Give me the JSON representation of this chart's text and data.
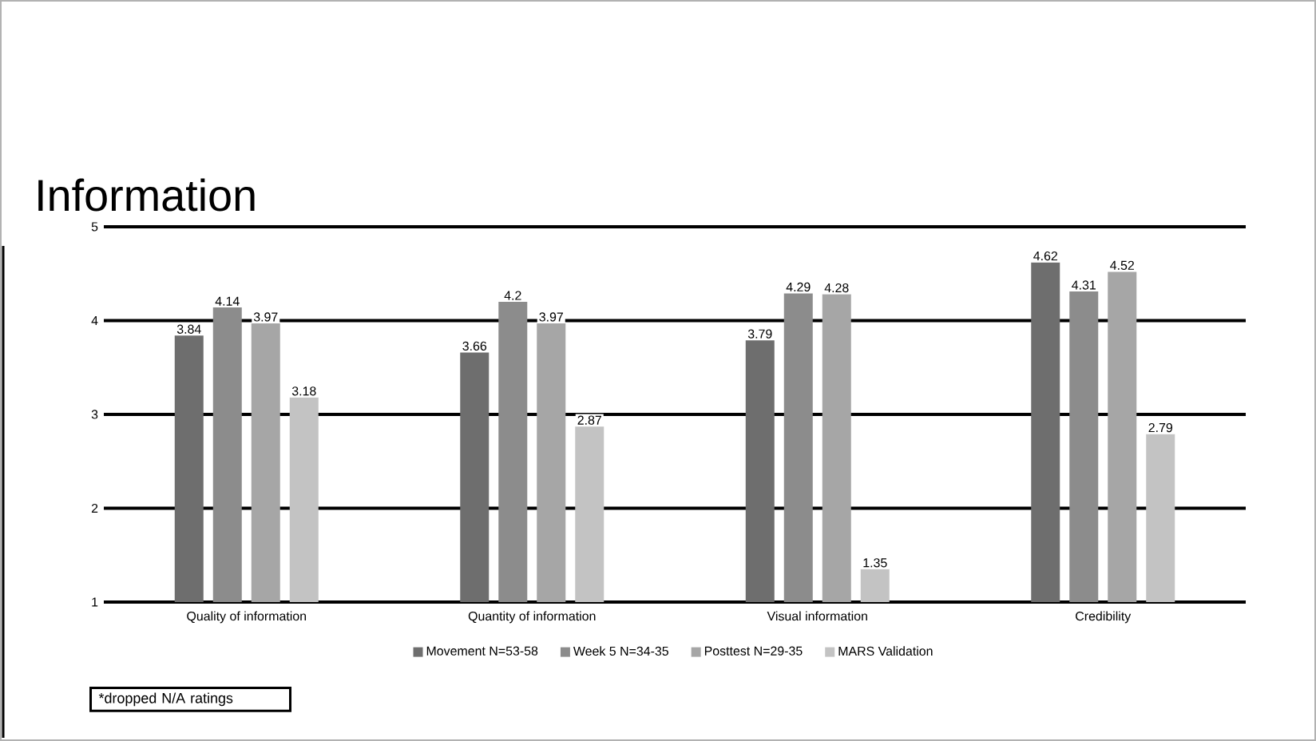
{
  "chart_data": {
    "type": "bar",
    "title": "Information",
    "categories": [
      "Quality of information",
      "Quantity of information",
      "Visual information",
      "Credibility"
    ],
    "series": [
      {
        "name": "Movement N=53-58",
        "color": "#6e6e6e",
        "values": [
          3.84,
          3.66,
          3.79,
          4.62
        ]
      },
      {
        "name": "Week 5 N=34-35",
        "color": "#8c8c8c",
        "values": [
          4.14,
          4.2,
          4.29,
          4.31
        ]
      },
      {
        "name": "Posttest N=29-35",
        "color": "#a6a6a6",
        "values": [
          3.97,
          3.97,
          4.28,
          4.52
        ]
      },
      {
        "name": "MARS Validation",
        "color": "#c3c3c3",
        "values": [
          3.18,
          2.87,
          1.35,
          2.79
        ]
      }
    ],
    "ylim": [
      1,
      5
    ],
    "yticks": [
      1,
      2,
      3,
      4,
      5
    ],
    "grid": "y",
    "legend": "bottom",
    "data_labels": true,
    "annotations": [
      "*dropped N/A ratings"
    ]
  }
}
